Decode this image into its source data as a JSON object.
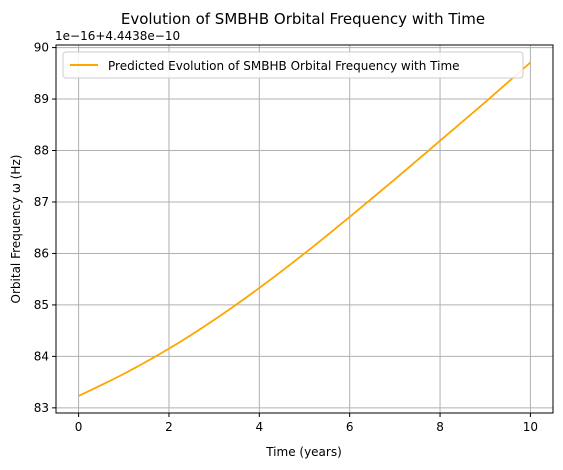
{
  "chart_data": {
    "type": "line",
    "title": "Evolution of SMBHB Orbital Frequency with Time",
    "xlabel": "Time (years)",
    "ylabel": "Orbital Frequency ω (Hz)",
    "offset_text": "1e−16+4.4438e−10",
    "xlim": [
      -0.5,
      10.5
    ],
    "ylim": [
      82.9,
      90.05
    ],
    "x_ticks": [
      0,
      2,
      4,
      6,
      8,
      10
    ],
    "x_tick_labels": [
      "0",
      "2",
      "4",
      "6",
      "8",
      "10"
    ],
    "y_ticks": [
      83,
      84,
      85,
      86,
      87,
      88,
      89,
      90
    ],
    "y_tick_labels": [
      "83",
      "84",
      "85",
      "86",
      "87",
      "88",
      "89",
      "90"
    ],
    "grid": true,
    "legend_position": "upper-left",
    "series": [
      {
        "name": "Predicted Evolution of SMBHB Orbital Frequency with Time",
        "color": "#FFA500",
        "x": [
          0,
          1,
          2,
          3,
          4,
          5,
          6,
          7,
          8,
          9,
          10
        ],
        "y": [
          83.23,
          83.66,
          84.15,
          84.71,
          85.33,
          86.0,
          86.71,
          87.44,
          88.19,
          88.94,
          89.71
        ]
      }
    ]
  }
}
